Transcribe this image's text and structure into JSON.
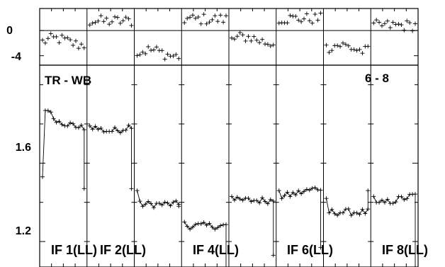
{
  "chart_data": {
    "type": "scatter",
    "title": "",
    "baseline_label": "TR - WB",
    "channel_label": "6 - 8",
    "phase_panel": {
      "ylabel": "",
      "yticks": [
        "0",
        "-4"
      ],
      "ylim": [
        -5.5,
        3.5
      ]
    },
    "amp_panel": {
      "ylabel": "",
      "yticks": [
        "1.6",
        "1.2"
      ],
      "ylim": [
        1.07,
        2.1
      ]
    },
    "if_labels": [
      "IF 1(LL)",
      "IF 2(LL)",
      "IF 4(LL)",
      "IF 6(LL)",
      "IF 8(LL)"
    ],
    "series": [
      {
        "phase_level": -1.8,
        "amp_level": 1.8,
        "amp_drop_end": 1.47,
        "amp_start": 1.53,
        "amp_shape": "hump"
      },
      {
        "phase_level": 1.5,
        "amp_level": 1.78,
        "amp_drop_end": 1.47,
        "amp_start": 1.79,
        "amp_shape": "bowl"
      },
      {
        "phase_level": -3.6,
        "amp_level": 1.39,
        "amp_drop_end": 1.38,
        "amp_start": 1.46,
        "amp_shape": "flat"
      },
      {
        "phase_level": 1.8,
        "amp_level": 1.28,
        "amp_drop_end": 1.05,
        "amp_start": 1.3,
        "amp_shape": "flat"
      },
      {
        "phase_level": -1.5,
        "amp_level": 1.41,
        "amp_drop_end": 1.13,
        "amp_start": 1.43,
        "amp_shape": "flat"
      },
      {
        "phase_level": 1.9,
        "amp_level": 1.45,
        "amp_drop_end": 1.17,
        "amp_start": 1.46,
        "amp_shape": "rise"
      },
      {
        "phase_level": -2.8,
        "amp_level": 1.35,
        "amp_drop_end": 1.46,
        "amp_start": 1.42,
        "amp_shape": "flat"
      },
      {
        "phase_level": 0.8,
        "amp_level": 1.41,
        "amp_drop_end": 1.07,
        "amp_start": 1.43,
        "amp_shape": "rise"
      }
    ]
  }
}
